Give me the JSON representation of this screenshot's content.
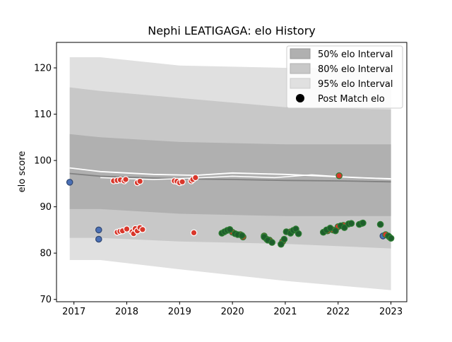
{
  "chart_data": {
    "type": "scatter",
    "title": "Nephi LEATIGAGA: elo History",
    "xlabel": "",
    "ylabel": "elo score",
    "xlim": [
      2016.67,
      2023.3
    ],
    "ylim": [
      69.5,
      125.5
    ],
    "x_ticks": [
      {
        "value": 2017,
        "label": "2017"
      },
      {
        "value": 2018,
        "label": "2018"
      },
      {
        "value": 2019,
        "label": "2019"
      },
      {
        "value": 2020,
        "label": "2020"
      },
      {
        "value": 2021,
        "label": "2021"
      },
      {
        "value": 2022,
        "label": "2022"
      },
      {
        "value": 2023,
        "label": "2023"
      }
    ],
    "y_ticks": [
      70,
      80,
      90,
      100,
      110,
      120
    ],
    "legend": {
      "placement": "top-right",
      "entries": [
        {
          "label": "50% elo Interval",
          "color": "#b0b0b0",
          "kind": "patch"
        },
        {
          "label": "80% elo Interval",
          "color": "#c8c8c8",
          "kind": "patch"
        },
        {
          "label": "95% elo Interval",
          "color": "#e0e0e0",
          "kind": "patch"
        },
        {
          "label": "Post Match elo",
          "color": "#000000",
          "kind": "marker"
        }
      ]
    },
    "bands": [
      {
        "name": "95% elo Interval",
        "color": "#e0e0e0",
        "x": [
          2016.92,
          2017.5,
          2019.0,
          2021.0,
          2023.0
        ],
        "lower": [
          78.5,
          78.5,
          76.5,
          74.0,
          72.0
        ],
        "upper": [
          122.3,
          122.3,
          120.5,
          120.0,
          120.0
        ]
      },
      {
        "name": "80% elo Interval",
        "color": "#c8c8c8",
        "x": [
          2016.92,
          2017.5,
          2019.0,
          2021.0,
          2023.0
        ],
        "lower": [
          83.3,
          83.3,
          82.5,
          82.0,
          81.0
        ],
        "upper": [
          115.8,
          115.0,
          113.5,
          111.5,
          111.0
        ]
      },
      {
        "name": "50% elo Interval",
        "color": "#b0b0b0",
        "x": [
          2016.92,
          2017.5,
          2019.0,
          2021.0,
          2023.0
        ],
        "lower": [
          89.5,
          89.5,
          88.5,
          88.0,
          88.0
        ],
        "upper": [
          105.7,
          105.0,
          104.0,
          103.5,
          103.5
        ]
      }
    ],
    "series": [
      {
        "kind": "line",
        "color": "#808080",
        "width": 1.8,
        "x": [
          2016.92,
          2017.5,
          2018.5,
          2019.3,
          2020.0,
          2021.0,
          2022.0,
          2023.0
        ],
        "y": [
          97.2,
          96.6,
          96.2,
          96.0,
          95.9,
          95.7,
          95.6,
          95.4
        ]
      },
      {
        "kind": "line",
        "color": "#ffffff",
        "width": 1.8,
        "x": [
          2016.92,
          2017.5,
          2018.5,
          2019.3,
          2020.0,
          2021.0,
          2022.0,
          2023.0
        ],
        "y": [
          98.4,
          97.6,
          97.0,
          96.8,
          97.3,
          97.0,
          96.5,
          96.0
        ]
      },
      {
        "kind": "line",
        "color": "#ffffff",
        "width": 1.5,
        "x": [
          2017.5,
          2018.5,
          2019.3,
          2020.0,
          2020.8,
          2021.5,
          2022.3,
          2023.0
        ],
        "y": [
          96.3,
          95.9,
          96.2,
          96.6,
          96.3,
          96.9,
          96.3,
          96.1
        ]
      },
      {
        "kind": "points",
        "name": "blue",
        "fill": "#4a6fb5",
        "stroke": "#2f4670",
        "points": [
          [
            2016.92,
            95.3
          ],
          [
            2017.47,
            85.0
          ],
          [
            2017.47,
            83.0
          ],
          [
            2022.85,
            83.7
          ]
        ]
      },
      {
        "kind": "points",
        "name": "red-white-edge",
        "fill": "#d9372b",
        "stroke": "#ffffff",
        "points": [
          [
            2017.75,
            95.6
          ],
          [
            2017.82,
            95.7
          ],
          [
            2017.88,
            95.8
          ],
          [
            2017.95,
            95.6
          ],
          [
            2017.98,
            95.9
          ],
          [
            2018.2,
            95.2
          ],
          [
            2018.25,
            95.5
          ],
          [
            2018.9,
            95.6
          ],
          [
            2018.95,
            95.5
          ],
          [
            2019.0,
            95.2
          ],
          [
            2019.05,
            95.4
          ],
          [
            2019.22,
            95.6
          ],
          [
            2019.25,
            95.9
          ],
          [
            2019.3,
            96.3
          ],
          [
            2017.82,
            84.5
          ],
          [
            2017.87,
            84.7
          ],
          [
            2017.92,
            84.8
          ],
          [
            2018.0,
            85.2
          ],
          [
            2018.1,
            84.6
          ],
          [
            2018.13,
            84.2
          ],
          [
            2018.16,
            85.3
          ],
          [
            2018.2,
            84.8
          ],
          [
            2018.25,
            85.5
          ],
          [
            2018.3,
            85.1
          ],
          [
            2019.27,
            84.4
          ]
        ]
      },
      {
        "kind": "points",
        "name": "red-green-edge",
        "fill": "#d9372b",
        "stroke": "#2e7d32",
        "points": [
          [
            2020.0,
            84.5
          ],
          [
            2020.15,
            84.0
          ],
          [
            2020.2,
            83.5
          ],
          [
            2020.6,
            83.7
          ],
          [
            2020.65,
            83.0
          ],
          [
            2020.7,
            82.8
          ],
          [
            2020.95,
            82.5
          ],
          [
            2021.1,
            84.6
          ],
          [
            2021.2,
            85.0
          ],
          [
            2021.8,
            84.8
          ],
          [
            2021.9,
            85.0
          ],
          [
            2022.0,
            85.7
          ],
          [
            2022.02,
            96.7
          ],
          [
            2022.1,
            86.0
          ],
          [
            2022.2,
            86.3
          ],
          [
            2022.45,
            86.4
          ],
          [
            2022.9,
            84.0
          ],
          [
            2022.97,
            83.5
          ]
        ]
      },
      {
        "kind": "points",
        "name": "green",
        "fill": "#1e5e2c",
        "stroke": "#2e7d32",
        "points": [
          [
            2019.8,
            84.3
          ],
          [
            2019.85,
            84.6
          ],
          [
            2019.9,
            84.9
          ],
          [
            2019.95,
            85.1
          ],
          [
            2020.05,
            84.2
          ],
          [
            2020.1,
            84.0
          ],
          [
            2020.18,
            83.8
          ],
          [
            2020.6,
            83.5
          ],
          [
            2020.67,
            82.8
          ],
          [
            2020.75,
            82.3
          ],
          [
            2020.92,
            81.9
          ],
          [
            2020.98,
            83.0
          ],
          [
            2021.02,
            84.6
          ],
          [
            2021.1,
            84.3
          ],
          [
            2021.15,
            84.9
          ],
          [
            2021.2,
            85.2
          ],
          [
            2021.25,
            84.2
          ],
          [
            2021.72,
            84.5
          ],
          [
            2021.78,
            85.0
          ],
          [
            2021.85,
            85.4
          ],
          [
            2021.95,
            84.8
          ],
          [
            2022.05,
            85.9
          ],
          [
            2022.12,
            85.5
          ],
          [
            2022.2,
            86.3
          ],
          [
            2022.25,
            86.4
          ],
          [
            2022.4,
            86.2
          ],
          [
            2022.47,
            86.5
          ],
          [
            2022.8,
            86.2
          ],
          [
            2022.95,
            83.7
          ],
          [
            2023.0,
            83.2
          ]
        ]
      }
    ]
  }
}
